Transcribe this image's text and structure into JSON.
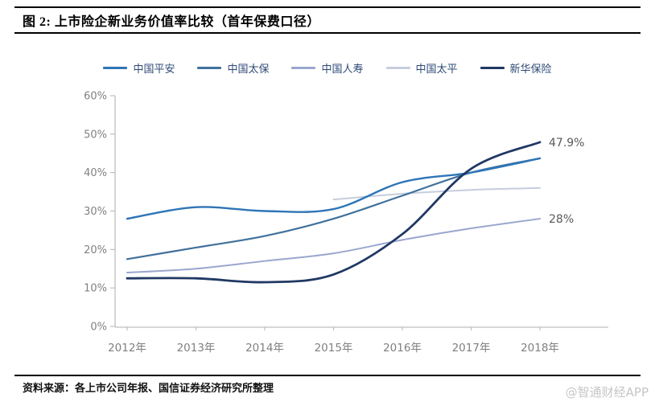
{
  "header": {
    "title": "图 2:  上市险企新业务价值率比较（首年保费口径）"
  },
  "chart_data": {
    "type": "line",
    "title": "上市险企新业务价值率比较（首年保费口径）",
    "x": [
      "2012年",
      "2013年",
      "2014年",
      "2015年",
      "2016年",
      "2017年",
      "2018年"
    ],
    "yticks": [
      "0%",
      "10%",
      "20%",
      "30%",
      "40%",
      "50%",
      "60%"
    ],
    "ylim": [
      0,
      60
    ],
    "grid": false,
    "legend_position": "top",
    "series": [
      {
        "id": "pingan",
        "name": "中国平安",
        "color": "#2E75B6",
        "width": 2.4,
        "z": 4,
        "values": [
          28,
          31,
          30,
          30.5,
          37.5,
          40,
          43.7
        ]
      },
      {
        "id": "taibao",
        "name": "中国太保",
        "color": "#41719C",
        "width": 2.2,
        "z": 3,
        "values": [
          17.5,
          20.5,
          23.5,
          28,
          34,
          40,
          43.7
        ]
      },
      {
        "id": "renshou",
        "name": "中国人寿",
        "color": "#9AA7CE",
        "width": 2.0,
        "z": 2,
        "values": [
          14,
          15,
          17,
          19,
          22.5,
          25.5,
          28
        ]
      },
      {
        "id": "taiping",
        "name": "中国太平",
        "color": "#C6CDDD",
        "width": 2.0,
        "z": 1,
        "values": [
          null,
          null,
          null,
          33,
          34.5,
          35.5,
          36
        ]
      },
      {
        "id": "xinhua",
        "name": "新华保险",
        "color": "#203864",
        "width": 2.8,
        "z": 5,
        "values": [
          12.5,
          12.5,
          11.5,
          13.5,
          24,
          41,
          47.9
        ]
      }
    ],
    "annotations": [
      {
        "id": "xinhua-2018",
        "text": "47.9%",
        "value": 47.9,
        "year_index": 6
      },
      {
        "id": "renshou-2018",
        "text": "28%",
        "value": 28,
        "year_index": 6
      }
    ]
  },
  "footer": {
    "source": "资料来源：各上市公司年报、国信证券经济研究所整理",
    "watermark": "@智通财经APP"
  }
}
